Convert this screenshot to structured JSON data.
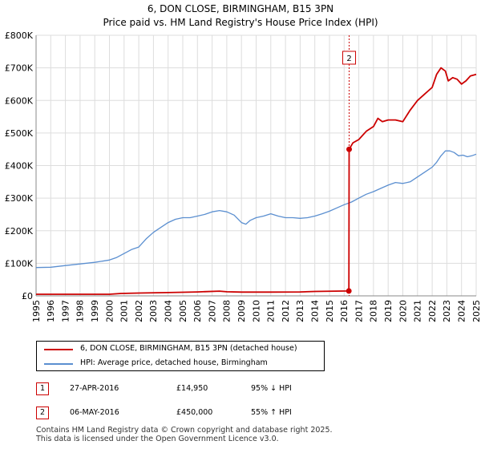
{
  "title": "6, DON CLOSE, BIRMINGHAM, B15 3PN",
  "subtitle": "Price paid vs. HM Land Registry's House Price Index (HPI)",
  "colors": {
    "property": "#cc0000",
    "hpi": "#5b8fd0",
    "grid": "#dddddd",
    "vline": "#cc0000"
  },
  "chart_data": {
    "type": "line",
    "title": "6, DON CLOSE, BIRMINGHAM, B15 3PN",
    "subtitle": "Price paid vs. HM Land Registry's House Price Index (HPI)",
    "xlim": [
      1995,
      2025
    ],
    "ylim": [
      0,
      800000
    ],
    "y_ticks": [
      0,
      100000,
      200000,
      300000,
      400000,
      500000,
      600000,
      700000,
      800000
    ],
    "y_tick_labels": [
      "£0",
      "£100K",
      "£200K",
      "£300K",
      "£400K",
      "£500K",
      "£600K",
      "£700K",
      "£800K"
    ],
    "x_ticks": [
      1995,
      1996,
      1997,
      1998,
      1999,
      2000,
      2001,
      2002,
      2003,
      2004,
      2005,
      2006,
      2007,
      2008,
      2009,
      2010,
      2011,
      2012,
      2013,
      2014,
      2015,
      2016,
      2017,
      2018,
      2019,
      2020,
      2021,
      2022,
      2023,
      2024,
      2025
    ],
    "x_tick_labels": [
      "1995",
      "1996",
      "1997",
      "1998",
      "1999",
      "2000",
      "2001",
      "2002",
      "2003",
      "2004",
      "2005",
      "2006",
      "2007",
      "2008",
      "2009",
      "2010",
      "2011",
      "2012",
      "2013",
      "2014",
      "2015",
      "2016",
      "2017",
      "2018",
      "2019",
      "2020",
      "2021",
      "2022",
      "2023",
      "2024",
      "2025"
    ],
    "grid": true,
    "series": [
      {
        "name": "6, DON CLOSE, BIRMINGHAM, B15 3PN (detached house)",
        "x": [
          1995.0,
          1998.0,
          2000.0,
          2000.8,
          2002.0,
          2004.0,
          2006.0,
          2007.5,
          2008.0,
          2009.0,
          2011.0,
          2013.0,
          2014.0,
          2016.32,
          2016.34,
          2016.6,
          2017.0,
          2017.5,
          2018.0,
          2018.3,
          2018.6,
          2019.0,
          2019.5,
          2020.0,
          2020.5,
          2021.0,
          2021.5,
          2022.0,
          2022.3,
          2022.6,
          2022.9,
          2023.1,
          2023.4,
          2023.7,
          2024.0,
          2024.3,
          2024.6,
          2025.0
        ],
        "values": [
          5000,
          5000,
          5000,
          7500,
          8500,
          10000,
          12000,
          14500,
          12500,
          11500,
          11500,
          12000,
          13500,
          14950,
          450000,
          470000,
          480000,
          505000,
          520000,
          545000,
          535000,
          540000,
          540000,
          535000,
          570000,
          600000,
          620000,
          640000,
          680000,
          700000,
          690000,
          660000,
          670000,
          665000,
          650000,
          660000,
          675000,
          680000
        ]
      },
      {
        "name": "HPI: Average price, detached house, Birmingham",
        "x": [
          1995.0,
          1996.0,
          1997.0,
          1998.0,
          1999.0,
          2000.0,
          2000.5,
          2001.0,
          2001.5,
          2002.0,
          2002.5,
          2003.0,
          2003.5,
          2004.0,
          2004.5,
          2005.0,
          2005.5,
          2006.0,
          2006.5,
          2007.0,
          2007.5,
          2008.0,
          2008.5,
          2009.0,
          2009.3,
          2009.6,
          2010.0,
          2010.5,
          2011.0,
          2011.5,
          2012.0,
          2012.5,
          2013.0,
          2013.5,
          2014.0,
          2014.5,
          2015.0,
          2015.5,
          2016.0,
          2016.5,
          2017.0,
          2017.5,
          2018.0,
          2018.5,
          2019.0,
          2019.5,
          2020.0,
          2020.5,
          2021.0,
          2021.5,
          2022.0,
          2022.3,
          2022.6,
          2022.9,
          2023.2,
          2023.5,
          2023.8,
          2024.1,
          2024.4,
          2024.7,
          2025.0
        ],
        "values": [
          87000,
          88000,
          93000,
          98000,
          103000,
          110000,
          118000,
          130000,
          142000,
          150000,
          175000,
          195000,
          210000,
          225000,
          235000,
          240000,
          240000,
          245000,
          250000,
          258000,
          262000,
          258000,
          248000,
          225000,
          220000,
          232000,
          240000,
          245000,
          252000,
          245000,
          240000,
          240000,
          238000,
          240000,
          245000,
          252000,
          260000,
          270000,
          280000,
          288000,
          300000,
          312000,
          320000,
          330000,
          340000,
          348000,
          345000,
          350000,
          365000,
          380000,
          395000,
          410000,
          430000,
          445000,
          445000,
          440000,
          430000,
          432000,
          427000,
          430000,
          435000
        ]
      }
    ],
    "annotations": [
      {
        "label": "2",
        "x": 2016.34,
        "note": "vertical dashed marker with label box near top"
      }
    ],
    "markers": [
      {
        "x": 2016.32,
        "y": 14950
      },
      {
        "x": 2016.34,
        "y": 450000
      }
    ]
  },
  "legend": {
    "items": [
      {
        "label": "6, DON CLOSE, BIRMINGHAM, B15 3PN (detached house)"
      },
      {
        "label": "HPI: Average price, detached house, Birmingham"
      }
    ]
  },
  "transactions": [
    {
      "num": "1",
      "date": "27-APR-2016",
      "price": "£14,950",
      "hpi": "95% ↓ HPI"
    },
    {
      "num": "2",
      "date": "06-MAY-2016",
      "price": "£450,000",
      "hpi": "55% ↑ HPI"
    }
  ],
  "footer": {
    "line1": "Contains HM Land Registry data © Crown copyright and database right 2025.",
    "line2": "This data is licensed under the Open Government Licence v3.0."
  }
}
